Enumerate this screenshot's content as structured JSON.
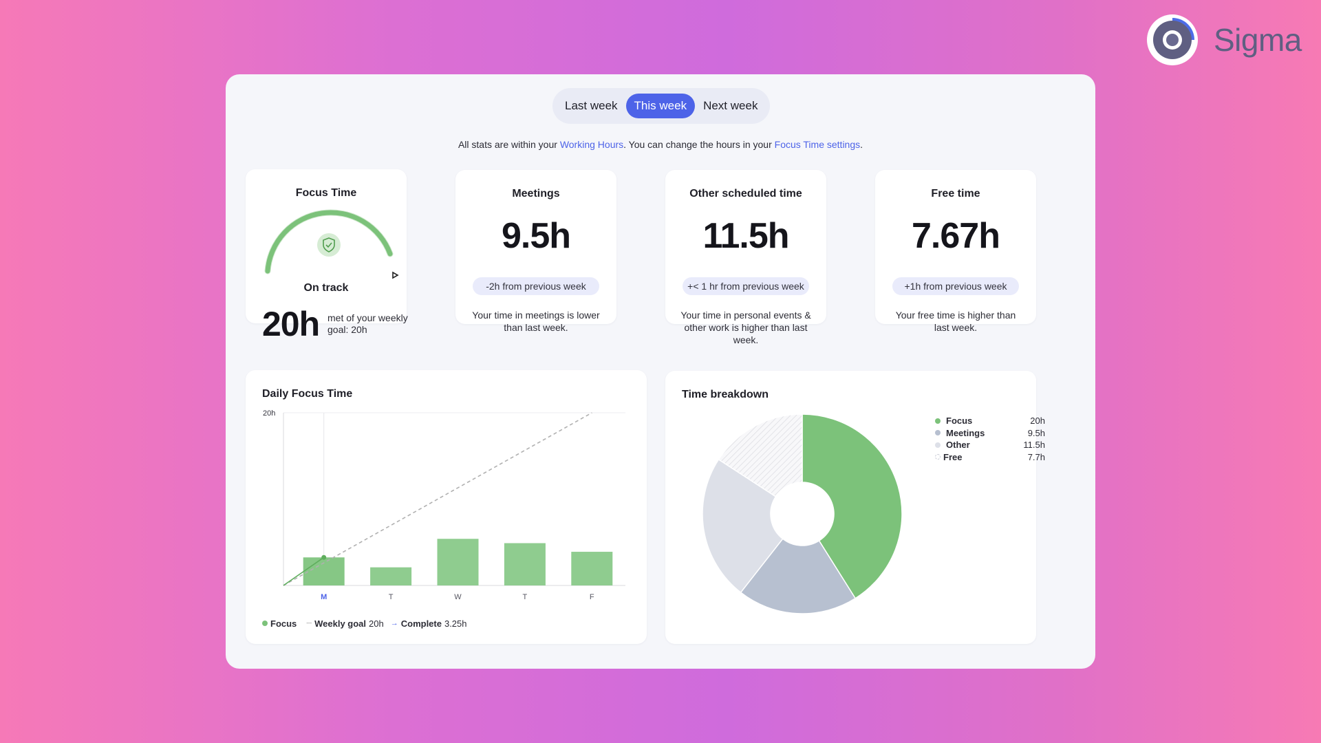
{
  "brand": {
    "name": "Sigma"
  },
  "week_toggle": {
    "options": [
      "Last week",
      "This week",
      "Next week"
    ],
    "selected": "This week"
  },
  "info": {
    "pre": "All stats are within your ",
    "link1": "Working Hours",
    "mid": ". You can change the hours in your ",
    "link2": "Focus Time settings",
    "post": "."
  },
  "cards": {
    "focus": {
      "title": "Focus Time",
      "status": "On track",
      "value": "20h",
      "goal_text": "met of your weekly goal: 20h",
      "progress": 1.0
    },
    "meetings": {
      "title": "Meetings",
      "value": "9.5h",
      "change": "-2h from previous week",
      "desc": "Your time in meetings is lower than last week."
    },
    "other": {
      "title": "Other scheduled time",
      "value": "11.5h",
      "change": "+< 1 hr from previous week",
      "desc": "Your time in personal events & other work is higher than last week."
    },
    "free": {
      "title": "Free time",
      "value": "7.67h",
      "change": "+1h from previous week",
      "desc": "Your free time is higher than last week."
    }
  },
  "daily": {
    "title": "Daily Focus Time",
    "legend": {
      "focus": "Focus",
      "goal_label": "Weekly goal",
      "goal_value": "20h",
      "complete_label": "Complete",
      "complete_value": "3.25h"
    }
  },
  "breakdown": {
    "title": "Time breakdown",
    "legend": [
      {
        "name": "Focus",
        "value": "20h"
      },
      {
        "name": "Meetings",
        "value": "9.5h"
      },
      {
        "name": "Other",
        "value": "11.5h"
      },
      {
        "name": "Free",
        "value": "7.7h"
      }
    ]
  },
  "chart_data": [
    {
      "type": "bar",
      "title": "Daily Focus Time",
      "categories": [
        "M",
        "T",
        "W",
        "T",
        "F"
      ],
      "highlight_category_index": 0,
      "series": [
        {
          "name": "Focus",
          "values": [
            3.25,
            2.1,
            5.4,
            4.9,
            3.9
          ]
        }
      ],
      "goal_line": {
        "name": "Weekly goal",
        "from": 0,
        "to": 20
      },
      "ylim": [
        0,
        20
      ],
      "y_tick_labels": [
        "20h"
      ],
      "colors": {
        "bar": "#8fcc8f",
        "goal": "#b0b0b0"
      }
    },
    {
      "type": "pie",
      "title": "Time breakdown",
      "labels": [
        "Focus",
        "Meetings",
        "Other",
        "Free"
      ],
      "values": [
        20,
        9.5,
        11.5,
        7.7
      ],
      "donut": true,
      "colors": [
        "#7cc27a",
        "#b7c0d0",
        "#dde0e8",
        "#f1f2f5"
      ]
    }
  ],
  "colors": {
    "accent": "#4d63e8",
    "green": "#7cc27a",
    "pill": "#e9ebfb"
  }
}
